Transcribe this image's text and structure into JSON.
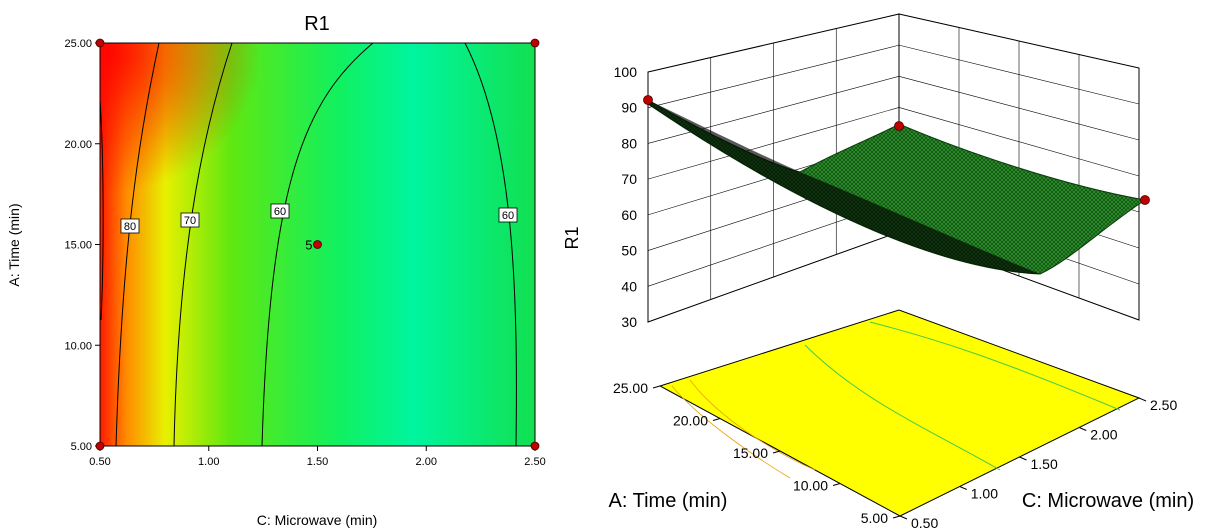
{
  "chart_data": [
    {
      "type": "heatmap",
      "subtype": "contour",
      "title": "R1",
      "xlabel": "C: Microwave (min)",
      "ylabel": "A: Time (min)",
      "xlim": [
        0.5,
        2.5
      ],
      "ylim": [
        5.0,
        25.0
      ],
      "x_ticks": [
        "0.50",
        "1.00",
        "1.50",
        "2.00",
        "2.50"
      ],
      "y_ticks": [
        "5.00",
        "10.00",
        "15.00",
        "20.00",
        "25.00"
      ],
      "contour_labels": [
        "80",
        "70",
        "60",
        "60"
      ],
      "design_points": [
        {
          "x": 0.5,
          "y": 25.0,
          "label": ""
        },
        {
          "x": 2.5,
          "y": 25.0,
          "label": ""
        },
        {
          "x": 0.5,
          "y": 5.0,
          "label": ""
        },
        {
          "x": 2.5,
          "y": 5.0,
          "label": ""
        },
        {
          "x": 1.5,
          "y": 15.0,
          "label": "5"
        }
      ],
      "color_scale": [
        "#ff0000",
        "#ffff00",
        "#00ff66"
      ]
    },
    {
      "type": "surface",
      "zlabel": "R1",
      "xlabel": "A: Time (min)",
      "ylabel": "C: Microwave (min)",
      "z_ticks": [
        "30",
        "40",
        "50",
        "60",
        "70",
        "80",
        "90",
        "100"
      ],
      "time_ticks": [
        "5.00",
        "10.00",
        "15.00",
        "20.00",
        "25.00"
      ],
      "microwave_ticks": [
        "0.50",
        "1.00",
        "1.50",
        "2.00",
        "2.50"
      ],
      "zlim": [
        30,
        100
      ],
      "surface_color": "#1f8a1f",
      "floor_color": "#ffff00"
    }
  ]
}
